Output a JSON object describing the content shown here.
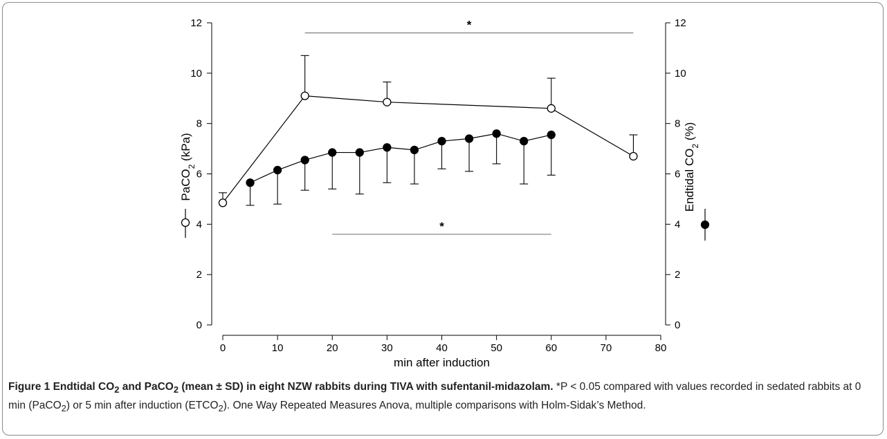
{
  "chart_data": {
    "type": "line",
    "xlabel": "min after induction",
    "xlim": [
      0,
      80
    ],
    "xticks": [
      0,
      10,
      20,
      30,
      40,
      50,
      60,
      70,
      80
    ],
    "ylim_left": [
      0,
      12
    ],
    "ylim_right": [
      0,
      12
    ],
    "yticks": [
      0,
      2,
      4,
      6,
      8,
      10,
      12
    ],
    "ylabel_left": {
      "base": "PaCO",
      "sub": "2",
      "tail": " (kPa)"
    },
    "ylabel_right": {
      "base": "Endtidal CO",
      "sub": "2",
      "tail": " (%)"
    },
    "series": [
      {
        "name": "PaCO2",
        "marker": "open-circle",
        "axis": "left",
        "x": [
          0,
          15,
          30,
          60,
          75
        ],
        "y": [
          4.85,
          9.1,
          8.85,
          8.6,
          6.7
        ],
        "sd": [
          0.4,
          1.6,
          0.8,
          1.2,
          0.85
        ]
      },
      {
        "name": "ETCO2",
        "marker": "filled-circle",
        "axis": "right",
        "x": [
          5,
          10,
          15,
          20,
          25,
          30,
          35,
          40,
          45,
          50,
          55,
          60
        ],
        "y": [
          5.65,
          6.15,
          6.55,
          6.85,
          6.85,
          7.05,
          6.95,
          7.3,
          7.4,
          7.6,
          7.3,
          7.55
        ],
        "sd": [
          0.9,
          1.35,
          1.2,
          1.45,
          1.65,
          1.4,
          1.35,
          1.1,
          1.3,
          1.2,
          1.7,
          1.6
        ]
      }
    ],
    "annotations": [
      {
        "label": "*",
        "x_start": 15,
        "x_end": 75,
        "y": 11.6
      },
      {
        "label": "*",
        "x_start": 20,
        "x_end": 60,
        "y": 3.6
      }
    ]
  },
  "caption": {
    "title_pre": "Figure 1 Endtidal CO",
    "title_sub1": "2",
    "title_mid": " and PaCO",
    "title_sub2": "2",
    "title_post": " (mean ± SD) in eight NZW rabbits during TIVA with sufentanil-midazolam.",
    "body_1": " *P < 0.05 compared with values recorded in sedated rabbits at 0 min (PaCO",
    "body_sub1": "2",
    "body_2": ") or 5 min after induction (ETCO",
    "body_sub2": "2",
    "body_3": "). One Way Repeated Measures Anova, multiple comparisons with Holm-Sidak’s Method."
  }
}
